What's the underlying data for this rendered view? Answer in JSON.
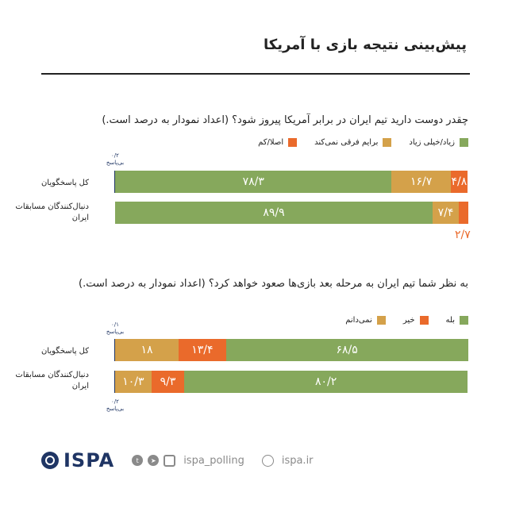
{
  "page_title": "پیش‌بینی نتیجه بازی با آمریکا",
  "colors": {
    "green": "#86a85c",
    "yellow": "#d4a14a",
    "orange": "#ea6a2b",
    "navy": "#1f3564"
  },
  "chart_data": [
    {
      "type": "bar",
      "title": "چقدر دوست دارید تیم ایران در برابر آمریکا پیروز شود؟ (اعداد نمودار به درصد است.)",
      "legend": [
        "زیاد/خیلی زیاد",
        "برایم فرقی نمی‌کند",
        "اصلا/کم"
      ],
      "legend_colors": [
        "#86a85c",
        "#d4a14a",
        "#ea6a2b"
      ],
      "categories": [
        "کل پاسخگویان",
        "دنبال‌کنندگان مسابقات ایران"
      ],
      "series": [
        {
          "name": "زیاد/خیلی زیاد",
          "values": [
            78.3,
            89.9
          ],
          "labels": [
            "۷۸/۳",
            "۸۹/۹"
          ]
        },
        {
          "name": "برایم فرقی نمی‌کند",
          "values": [
            16.7,
            7.4
          ],
          "labels": [
            "۱۶/۷",
            "۷/۴"
          ]
        },
        {
          "name": "اصلا/کم",
          "values": [
            4.8,
            2.7
          ],
          "labels": [
            "۴/۸",
            "۲/۷"
          ]
        }
      ],
      "no_answer": {
        "label": "بی‌پاسخ",
        "value_text": "۰/۲",
        "value": 0.2
      },
      "stacked": true,
      "orientation": "horizontal",
      "xlim": [
        0,
        100
      ]
    },
    {
      "type": "bar",
      "title": "به نظر شما تیم ایران به مرحله بعد بازی‌ها صعود خواهد کرد؟ (اعداد نمودار به درصد است.)",
      "legend": [
        "بله",
        "خیر",
        "نمی‌دانم"
      ],
      "legend_colors": [
        "#86a85c",
        "#ea6a2b",
        "#d4a14a"
      ],
      "categories": [
        "کل پاسخگویان",
        "دنبال‌کنندگان مسابقات ایران"
      ],
      "series": [
        {
          "name": "بله",
          "values": [
            68.5,
            80.2
          ],
          "labels": [
            "۶۸/۵",
            "۸۰/۲"
          ]
        },
        {
          "name": "خیر",
          "values": [
            13.4,
            9.3
          ],
          "labels": [
            "۱۳/۴",
            "۹/۳"
          ]
        },
        {
          "name": "نمی‌دانم",
          "values": [
            18,
            10.3
          ],
          "labels": [
            "۱۸",
            "۱۰/۳"
          ]
        }
      ],
      "no_answer_rows": [
        {
          "label": "بی‌پاسخ",
          "value_text": "۰/۱",
          "value": 0.1
        },
        {
          "label": "بی‌پاسخ",
          "value_text": "۰/۲",
          "value": 0.2
        }
      ],
      "stacked": true,
      "orientation": "horizontal",
      "xlim": [
        0,
        100
      ]
    }
  ],
  "footer": {
    "logo_text": "ISPA",
    "social_handle": "ispa_polling",
    "website": "ispa.ir",
    "icons": [
      "twitter-icon",
      "telegram-icon",
      "instagram-icon",
      "globe-icon"
    ]
  }
}
